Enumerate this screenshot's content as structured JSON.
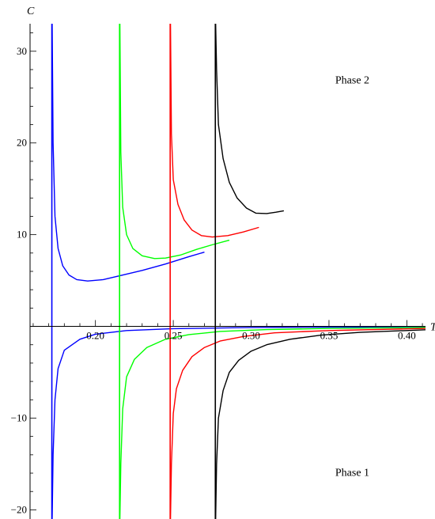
{
  "chart_data": {
    "type": "line",
    "title": "",
    "xlabel": "T",
    "ylabel": "C",
    "xlim": [
      0.158,
      0.412
    ],
    "ylim": [
      -21,
      33
    ],
    "grid": false,
    "x_ticks": [
      0.2,
      0.25,
      0.3,
      0.35,
      0.4
    ],
    "x_tick_labels": [
      "0.20",
      "0.25",
      "0.30",
      "0.35",
      "0.40"
    ],
    "x_minor_step": 0.01,
    "y_ticks": [
      -20,
      -10,
      10,
      20,
      30
    ],
    "y_tick_labels": [
      "−20",
      "−10",
      "10",
      "20",
      "30"
    ],
    "y_minor_step": 2,
    "annotations": [
      {
        "text": "Phase 2",
        "x": 0.365,
        "y": 26.5
      },
      {
        "text": "Phase 1",
        "x": 0.365,
        "y": -16.3
      }
    ],
    "series": [
      {
        "color": "#0000ff",
        "asymptote": 0.172,
        "upper": [
          [
            0.1722,
            33
          ],
          [
            0.1728,
            20
          ],
          [
            0.174,
            12
          ],
          [
            0.176,
            8.5
          ],
          [
            0.179,
            6.6
          ],
          [
            0.183,
            5.6
          ],
          [
            0.188,
            5.1
          ],
          [
            0.195,
            4.95
          ],
          [
            0.205,
            5.1
          ],
          [
            0.215,
            5.5
          ],
          [
            0.23,
            6.1
          ],
          [
            0.245,
            6.8
          ],
          [
            0.26,
            7.6
          ],
          [
            0.27,
            8.1
          ]
        ],
        "lower": [
          [
            0.1722,
            -21
          ],
          [
            0.1728,
            -14
          ],
          [
            0.174,
            -8
          ],
          [
            0.176,
            -4.6
          ],
          [
            0.18,
            -2.6
          ],
          [
            0.19,
            -1.4
          ],
          [
            0.2,
            -0.85
          ],
          [
            0.22,
            -0.45
          ],
          [
            0.25,
            -0.25
          ],
          [
            0.3,
            -0.12
          ],
          [
            0.35,
            -0.07
          ],
          [
            0.412,
            -0.04
          ]
        ]
      },
      {
        "color": "#00ff00",
        "asymptote": 0.2155,
        "upper": [
          [
            0.2157,
            33
          ],
          [
            0.2163,
            19
          ],
          [
            0.2175,
            13
          ],
          [
            0.22,
            10
          ],
          [
            0.224,
            8.5
          ],
          [
            0.23,
            7.7
          ],
          [
            0.238,
            7.4
          ],
          [
            0.245,
            7.45
          ],
          [
            0.255,
            7.8
          ],
          [
            0.265,
            8.4
          ],
          [
            0.275,
            8.9
          ],
          [
            0.286,
            9.4
          ]
        ],
        "lower": [
          [
            0.2157,
            -21
          ],
          [
            0.2163,
            -15
          ],
          [
            0.2175,
            -9
          ],
          [
            0.22,
            -5.5
          ],
          [
            0.225,
            -3.6
          ],
          [
            0.233,
            -2.3
          ],
          [
            0.245,
            -1.4
          ],
          [
            0.26,
            -0.9
          ],
          [
            0.28,
            -0.55
          ],
          [
            0.31,
            -0.35
          ],
          [
            0.35,
            -0.22
          ],
          [
            0.412,
            -0.12
          ]
        ]
      },
      {
        "color": "#ff0000",
        "asymptote": 0.248,
        "upper": [
          [
            0.2482,
            33
          ],
          [
            0.2488,
            21
          ],
          [
            0.25,
            16
          ],
          [
            0.253,
            13.3
          ],
          [
            0.257,
            11.6
          ],
          [
            0.262,
            10.5
          ],
          [
            0.268,
            9.9
          ],
          [
            0.275,
            9.75
          ],
          [
            0.285,
            9.9
          ],
          [
            0.295,
            10.3
          ],
          [
            0.305,
            10.8
          ]
        ],
        "lower": [
          [
            0.2482,
            -21
          ],
          [
            0.2488,
            -15
          ],
          [
            0.25,
            -9.5
          ],
          [
            0.252,
            -6.8
          ],
          [
            0.256,
            -4.8
          ],
          [
            0.262,
            -3.3
          ],
          [
            0.27,
            -2.3
          ],
          [
            0.28,
            -1.6
          ],
          [
            0.295,
            -1.1
          ],
          [
            0.315,
            -0.7
          ],
          [
            0.35,
            -0.45
          ],
          [
            0.412,
            -0.22
          ]
        ]
      },
      {
        "color": "#000000",
        "asymptote": 0.277,
        "upper": [
          [
            0.2772,
            33
          ],
          [
            0.2778,
            28
          ],
          [
            0.279,
            22
          ],
          [
            0.282,
            18.3
          ],
          [
            0.286,
            15.7
          ],
          [
            0.291,
            14
          ],
          [
            0.297,
            12.9
          ],
          [
            0.303,
            12.35
          ],
          [
            0.31,
            12.3
          ],
          [
            0.316,
            12.45
          ],
          [
            0.321,
            12.6
          ]
        ],
        "lower": [
          [
            0.2772,
            -21
          ],
          [
            0.2778,
            -15
          ],
          [
            0.279,
            -10
          ],
          [
            0.282,
            -7
          ],
          [
            0.286,
            -5
          ],
          [
            0.292,
            -3.7
          ],
          [
            0.3,
            -2.7
          ],
          [
            0.31,
            -2
          ],
          [
            0.325,
            -1.4
          ],
          [
            0.345,
            -0.95
          ],
          [
            0.37,
            -0.65
          ],
          [
            0.412,
            -0.37
          ]
        ]
      }
    ]
  }
}
